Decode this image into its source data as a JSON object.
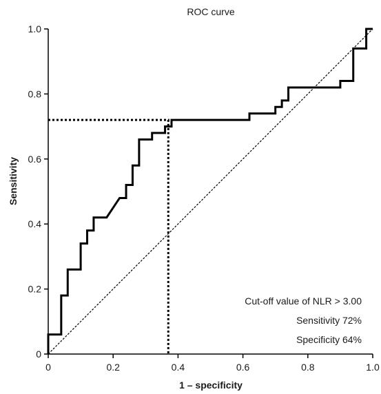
{
  "chart_data": {
    "type": "line",
    "title": "ROC curve",
    "xlabel": "1 – specificity",
    "ylabel": "Sensitivity",
    "xlim": [
      0,
      1
    ],
    "ylim": [
      0,
      1
    ],
    "x_ticks": [
      "0",
      "0.2",
      "0.4",
      "0.6",
      "0.8",
      "1.0"
    ],
    "y_ticks": [
      "0",
      "0.2",
      "0.4",
      "0.6",
      "0.8",
      "1.0"
    ],
    "grid": false,
    "series": [
      {
        "style": "solid-step",
        "points": [
          [
            0,
            0
          ],
          [
            0,
            0.06
          ],
          [
            0.04,
            0.06
          ],
          [
            0.04,
            0.18
          ],
          [
            0.06,
            0.18
          ],
          [
            0.06,
            0.26
          ],
          [
            0.1,
            0.26
          ],
          [
            0.1,
            0.34
          ],
          [
            0.12,
            0.34
          ],
          [
            0.12,
            0.38
          ],
          [
            0.14,
            0.38
          ],
          [
            0.14,
            0.42
          ],
          [
            0.18,
            0.42
          ],
          [
            0.22,
            0.48
          ],
          [
            0.24,
            0.48
          ],
          [
            0.24,
            0.52
          ],
          [
            0.26,
            0.52
          ],
          [
            0.26,
            0.58
          ],
          [
            0.28,
            0.58
          ],
          [
            0.28,
            0.66
          ],
          [
            0.32,
            0.66
          ],
          [
            0.32,
            0.68
          ],
          [
            0.36,
            0.68
          ],
          [
            0.36,
            0.7
          ],
          [
            0.38,
            0.7
          ],
          [
            0.38,
            0.72
          ],
          [
            0.62,
            0.72
          ],
          [
            0.62,
            0.74
          ],
          [
            0.7,
            0.74
          ],
          [
            0.7,
            0.76
          ],
          [
            0.72,
            0.76
          ],
          [
            0.72,
            0.78
          ],
          [
            0.74,
            0.78
          ],
          [
            0.74,
            0.82
          ],
          [
            0.9,
            0.82
          ],
          [
            0.9,
            0.84
          ],
          [
            0.94,
            0.84
          ],
          [
            0.94,
            0.94
          ],
          [
            0.98,
            0.94
          ],
          [
            0.98,
            1.0
          ],
          [
            1.0,
            1.0
          ]
        ]
      },
      {
        "style": "reference-diagonal",
        "points": [
          [
            0,
            0
          ],
          [
            1,
            1
          ]
        ]
      }
    ],
    "cutoff": {
      "x": 0.37,
      "y": 0.72
    },
    "annotations": [
      "Cut-off value of NLR > 3.00",
      "Sensitivity 72%",
      "Specificity 64%"
    ]
  }
}
